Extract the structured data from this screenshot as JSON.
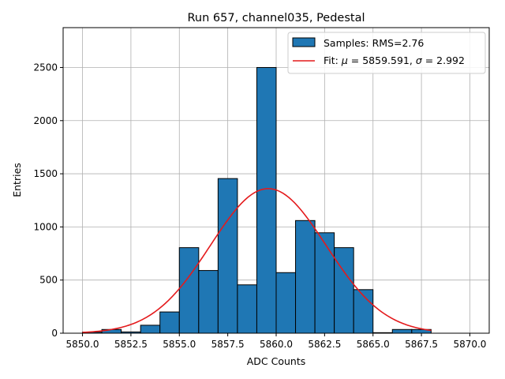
{
  "chart_data": {
    "type": "bar",
    "title": "Run 657, channel035, Pedestal",
    "xlabel": "ADC Counts",
    "ylabel": "Entries",
    "xlim": [
      5849,
      5871
    ],
    "ylim": [
      0,
      2875
    ],
    "grid": true,
    "legend_location": "top-right",
    "x_ticks": [
      5850.0,
      5852.5,
      5855.0,
      5857.5,
      5860.0,
      5862.5,
      5865.0,
      5867.5,
      5870.0
    ],
    "x_tick_labels": [
      "5850.0",
      "5852.5",
      "5855.0",
      "5857.5",
      "5860.0",
      "5862.5",
      "5865.0",
      "5867.5",
      "5870.0"
    ],
    "y_ticks": [
      0,
      500,
      1000,
      1500,
      2000,
      2500
    ],
    "y_tick_labels": [
      "0",
      "500",
      "1000",
      "1500",
      "2000",
      "2500"
    ],
    "bins": {
      "edges": [
        5850,
        5851,
        5852,
        5853,
        5854,
        5855,
        5856,
        5857,
        5858,
        5859,
        5860,
        5861,
        5862,
        5863,
        5864,
        5865,
        5866,
        5867,
        5868
      ],
      "counts": [
        10,
        35,
        12,
        75,
        200,
        805,
        590,
        1455,
        455,
        2500,
        570,
        1060,
        945,
        805,
        410,
        5,
        35,
        35
      ]
    },
    "fit": {
      "type": "gaussian",
      "mu": 5859.591,
      "sigma": 2.992,
      "x_range": [
        5850,
        5868
      ],
      "peak": 1360
    },
    "colors": {
      "bar_fill": "#1f77b4",
      "bar_edge": "#000000",
      "fit_line": "#e41a1c",
      "grid": "#b0b0b0"
    },
    "legend": [
      {
        "label": "Samples: RMS=2.76",
        "kind": "patch"
      },
      {
        "label_prefix": "Fit: ",
        "mu_symbol": "μ",
        "mu_text": " = 5859.591, ",
        "sigma_symbol": "σ",
        "sigma_text": " = 2.992",
        "kind": "line"
      }
    ]
  }
}
